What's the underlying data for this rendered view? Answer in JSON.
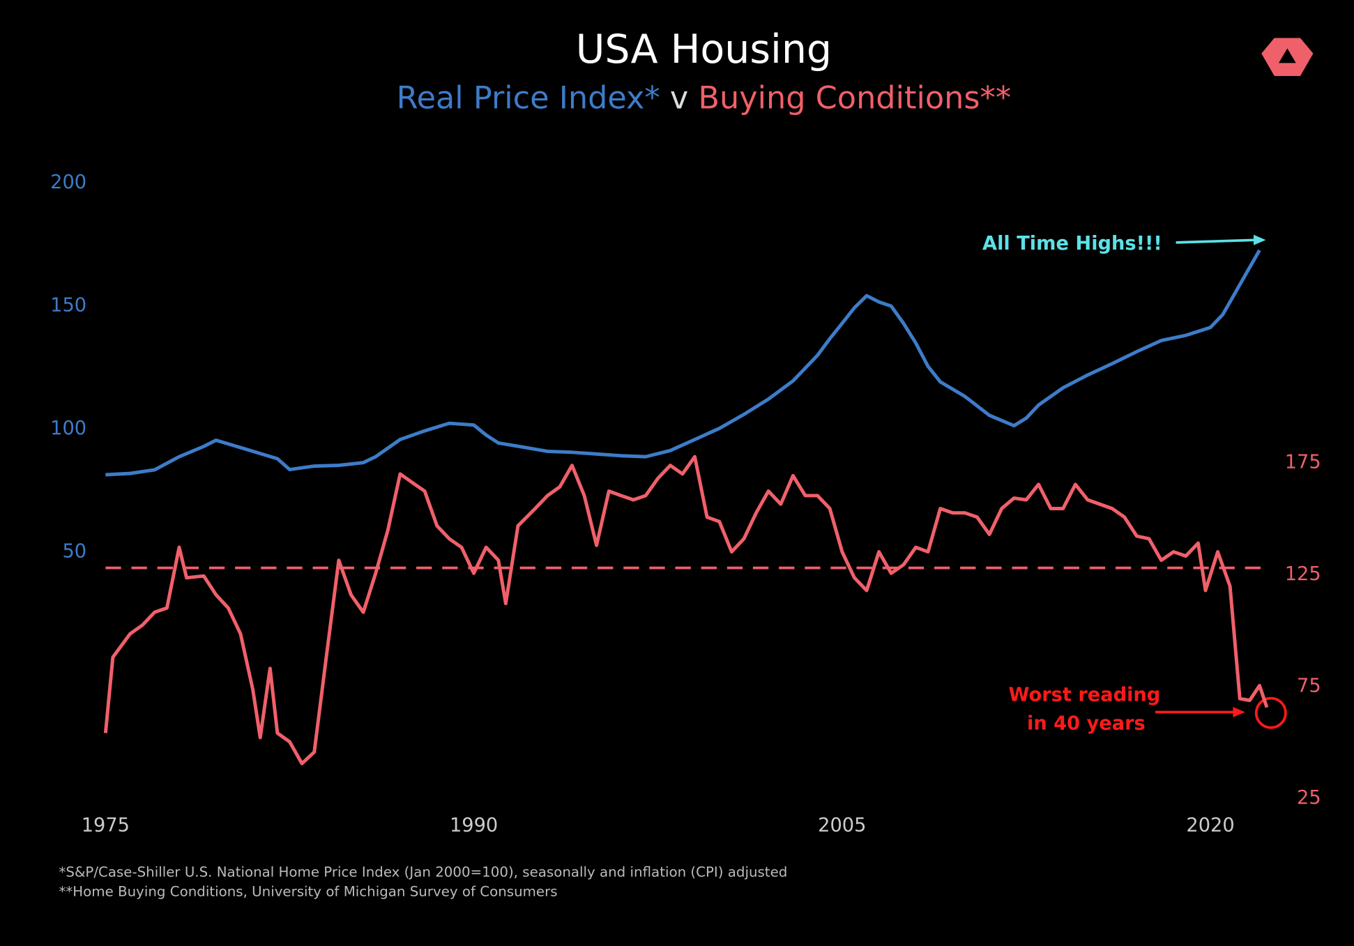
{
  "chart_data": {
    "type": "line",
    "title": "USA Housing",
    "subtitle": [
      "Real Price Index*",
      "v",
      "Buying Conditions**"
    ],
    "footnotes": [
      "*S&P/Case-Shiller U.S. National Home Price Index (Jan 2000=100), seasonally and inflation (CPI) adjusted",
      "**Home Buying Conditions, University of Michigan Survey of Consumers"
    ],
    "annotations": [
      "All Time Highs!!!",
      "Worst reading",
      "in 40 years"
    ],
    "xlim": [
      1975,
      2022.5
    ],
    "xticks": [
      1975,
      1990,
      2005,
      2020
    ],
    "ylim": [
      -50,
      200
    ],
    "yticks": [
      50,
      100,
      150,
      200
    ],
    "y2lim": [
      25,
      300
    ],
    "y2ticks": [
      25,
      75,
      125,
      175
    ],
    "reference_line": 128,
    "series": [
      {
        "name": "Real Price Index*",
        "color": "#3d7cc9",
        "axis": "y",
        "x": [
          1975,
          1976,
          1977,
          1978,
          1979,
          1979.5,
          1980,
          1981,
          1982,
          1982.5,
          1983.5,
          1984.5,
          1985.5,
          1986,
          1986.5,
          1987,
          1988,
          1989,
          1990,
          1990.5,
          1991,
          1992,
          1993,
          1994,
          1995,
          1996,
          1997,
          1998,
          1999,
          2000,
          2001,
          2002,
          2003,
          2004,
          2004.5,
          2005,
          2005.5,
          2006,
          2006.5,
          2007,
          2007.5,
          2008,
          2008.5,
          2009,
          2010,
          2011,
          2012,
          2012.5,
          2013,
          2014,
          2015,
          2016,
          2017,
          2018,
          2019,
          2020,
          2020.5,
          2021,
          2021.5,
          2022
        ],
        "values": [
          81.5,
          82,
          83.5,
          88.8,
          93,
          95.5,
          94,
          91,
          88,
          83.6,
          85,
          85.3,
          86.4,
          88.8,
          92.3,
          95.8,
          99.3,
          102.4,
          101.7,
          97.6,
          94.4,
          92.7,
          91,
          90.6,
          89.9,
          89.2,
          88.8,
          91.3,
          95.8,
          100.3,
          106,
          112.2,
          119.6,
          130,
          136.7,
          143,
          149.3,
          154.2,
          151.7,
          150,
          143,
          135,
          125.5,
          119.2,
          113.3,
          105.6,
          101.4,
          104.5,
          109.8,
          116.8,
          122,
          126.6,
          131.5,
          136,
          138.1,
          141.3,
          146.5,
          155.2,
          164,
          172.7
        ]
      },
      {
        "name": "Buying Conditions**",
        "color": "#f0606a",
        "axis": "y2",
        "x": [
          1975,
          1975.3,
          1976,
          1976.5,
          1977,
          1977.5,
          1978,
          1978.3,
          1979,
          1979.5,
          1980,
          1980.5,
          1981,
          1981.3,
          1981.7,
          1982,
          1982.5,
          1983,
          1983.5,
          1984,
          1984.5,
          1985,
          1985.5,
          1986,
          1986.5,
          1987,
          1987.5,
          1988,
          1988.5,
          1989,
          1989.5,
          1990,
          1990.5,
          1991,
          1991.3,
          1991.8,
          1992.5,
          1993,
          1993.5,
          1994,
          1994.5,
          1995,
          1995.5,
          1996,
          1996.5,
          1997,
          1997.5,
          1998,
          1998.5,
          1999,
          1999.5,
          2000,
          2000.5,
          2001,
          2001.5,
          2002,
          2002.5,
          2003,
          2003.5,
          2004,
          2004.5,
          2005,
          2005.5,
          2006,
          2006.5,
          2007,
          2007.5,
          2008,
          2008.5,
          2009,
          2009.5,
          2010,
          2010.5,
          2011,
          2011.5,
          2012,
          2012.5,
          2013,
          2013.5,
          2014,
          2014.5,
          2015,
          2016,
          2016.5,
          2017,
          2017.5,
          2018,
          2018.5,
          2019,
          2019.5,
          2019.8,
          2020.3,
          2020.8,
          2021.2,
          2021.6,
          2022,
          2022.3
        ],
        "values": [
          54.2,
          88.1,
          98.5,
          102.4,
          108.2,
          110.1,
          137.2,
          123.6,
          124.4,
          116,
          110.1,
          98.5,
          73.5,
          52.2,
          83.1,
          54.2,
          50.3,
          40.6,
          45.7,
          88.9,
          131.4,
          116,
          108.2,
          125.6,
          144.9,
          170,
          166.1,
          162.3,
          146.8,
          141,
          137.2,
          125.6,
          137.2,
          131.4,
          112.1,
          146.8,
          154.5,
          160.3,
          164.2,
          173.8,
          160.3,
          138.1,
          162.3,
          160.3,
          158.4,
          160.3,
          168,
          173.8,
          170,
          177.7,
          150.7,
          148.7,
          135.2,
          141,
          152.6,
          162.3,
          156.5,
          169.2,
          160.3,
          160.3,
          154.5,
          135.2,
          123.6,
          117.9,
          135.2,
          125.6,
          129.4,
          137.2,
          135.2,
          154.5,
          152.6,
          152.6,
          150.7,
          143,
          154.5,
          159.2,
          158.4,
          165.3,
          154.5,
          154.5,
          165.3,
          158.4,
          154.5,
          150.7,
          142.2,
          141,
          131.4,
          135.2,
          133.3,
          139.1,
          117.9,
          135.2,
          119.8,
          69.6,
          68.8,
          75.4,
          65.7
        ]
      }
    ]
  }
}
